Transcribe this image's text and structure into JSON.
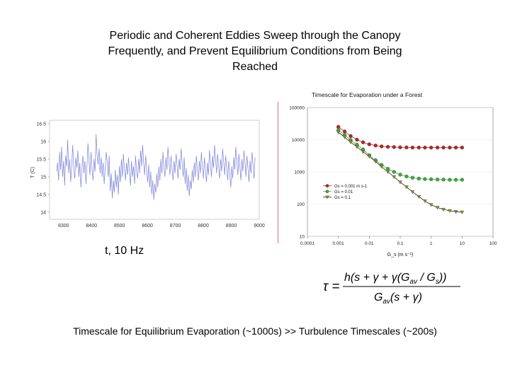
{
  "slide": {
    "title_lines": [
      "Periodic and Coherent Eddies Sweep through the Canopy",
      "Frequently, and Prevent Equilibrium Conditions from Being",
      "Reached"
    ],
    "left_caption": "t, 10 Hz",
    "bottom_text": "Timescale for Equilibrium Evaporation (~1000s) >> Turbulence Timescales (~200s)",
    "formula": {
      "lhs": "τ =",
      "numerator": "h(s + γ + γ(G_av / G_s))",
      "denominator": "G_av(s + γ)"
    }
  },
  "chart_data": [
    {
      "type": "line",
      "title": "",
      "xlabel": "",
      "ylabel": "T (C)",
      "xlim": [
        8250,
        9000
      ],
      "ylim": [
        13.8,
        16.6
      ],
      "xticks": [
        8300,
        8400,
        8500,
        8600,
        8700,
        8800,
        8900,
        9000
      ],
      "yticks": [
        14,
        14.5,
        15,
        15.5,
        16,
        16.5
      ],
      "ytick_labels": [
        "14",
        "14.5",
        "15",
        "15.5",
        "16",
        "16.5"
      ],
      "series": [
        {
          "name": "temperature",
          "color": "#7c82d8",
          "note": "10 Hz temperature fluctuation trace"
        }
      ]
    },
    {
      "type": "line",
      "title": "Timescale for Evaporation under a Forest",
      "xlabel": "G_s (m s⁻¹)",
      "ylabel": "",
      "xscale": "log",
      "yscale": "log",
      "xlim": [
        0.0001,
        100
      ],
      "ylim": [
        10,
        100000
      ],
      "xticks": [
        0.0001,
        0.001,
        0.01,
        0.1,
        1,
        10,
        100
      ],
      "xtick_labels": [
        "0.0001",
        "0.001",
        "0.01",
        "0.1",
        "1",
        "10",
        "100"
      ],
      "yticks": [
        10,
        100,
        1000,
        10000,
        100000
      ],
      "ytick_labels": [
        "10",
        "100",
        "1000",
        "10000",
        "100000"
      ],
      "legend": "lower-left",
      "x": [
        0.001,
        0.0016,
        0.0025,
        0.004,
        0.0063,
        0.01,
        0.016,
        0.025,
        0.04,
        0.063,
        0.1,
        0.16,
        0.25,
        0.4,
        0.63,
        1,
        1.6,
        2.5,
        4,
        6.3,
        10
      ],
      "series": [
        {
          "name": "Gs = 0.001 m s-1",
          "color": "#b52525",
          "marker": "circle",
          "values": [
            25000,
            18000,
            13000,
            10000,
            8300,
            7200,
            6600,
            6200,
            6000,
            5900,
            5800,
            5750,
            5700,
            5700,
            5700,
            5700,
            5700,
            5700,
            5700,
            5700,
            5700
          ]
        },
        {
          "name": "Gs = 0.01",
          "color": "#3fa83f",
          "marker": "circle",
          "values": [
            20000,
            14000,
            9800,
            7000,
            5000,
            3300,
            2300,
            1650,
            1250,
            1000,
            820,
            720,
            660,
            620,
            600,
            590,
            580,
            575,
            570,
            570,
            570
          ]
        },
        {
          "name": "Gs = 0.1",
          "color": "#8a8a2a",
          "marker": "triangle-down",
          "values": [
            17000,
            12000,
            8400,
            6000,
            4200,
            3000,
            2100,
            1450,
            1000,
            700,
            480,
            340,
            240,
            170,
            125,
            95,
            78,
            68,
            62,
            58,
            56
          ]
        }
      ]
    }
  ],
  "temperature_series": [
    15.15,
    15.4,
    14.9,
    15.7,
    15.2,
    15.85,
    15.0,
    15.45,
    14.75,
    15.6,
    15.3,
    16.05,
    15.1,
    15.5,
    14.85,
    15.35,
    15.9,
    15.2,
    14.95,
    15.55,
    15.25,
    15.75,
    15.0,
    15.4,
    14.7,
    15.2,
    15.6,
    15.1,
    15.45,
    14.8,
    15.3,
    15.95,
    15.5,
    15.05,
    15.7,
    15.25,
    14.9,
    15.5,
    15.15,
    16.2,
    15.6,
    15.35,
    15.8,
    15.1,
    15.55,
    15.0,
    15.4,
    14.8,
    15.25,
    15.7,
    15.45,
    15.0,
    15.6,
    14.6,
    15.1,
    14.4,
    14.9,
    14.55,
    15.2,
    14.7,
    15.05,
    14.5,
    15.3,
    14.85,
    15.5,
    15.0,
    15.65,
    15.2,
    14.9,
    15.4,
    15.05,
    15.55,
    15.15,
    14.75,
    15.45,
    15.0,
    15.3,
    14.8,
    15.6,
    15.15,
    14.95,
    15.5,
    15.1,
    15.75,
    15.3,
    15.9,
    15.4,
    15.05,
    15.6,
    15.2,
    14.85,
    15.35,
    14.7,
    15.15,
    14.5,
    14.9,
    14.35,
    14.8,
    14.55,
    15.1,
    14.7,
    15.3,
    14.9,
    15.5,
    15.1,
    15.7,
    15.3,
    15.0,
    15.55,
    15.2,
    15.85,
    15.4,
    15.05,
    15.6,
    15.25,
    14.9,
    15.45,
    15.1,
    15.65,
    15.35,
    14.95,
    15.5,
    15.2,
    15.8,
    15.4,
    15.0,
    15.55,
    14.8,
    15.25,
    14.6,
    15.05,
    14.45,
    14.9,
    14.65,
    15.2,
    14.85,
    15.4,
    15.0,
    15.6,
    15.2,
    14.9,
    15.45,
    15.1,
    15.7,
    15.3,
    14.95,
    15.55,
    15.2,
    14.85,
    15.4,
    15.05,
    15.75,
    15.35,
    15.0,
    15.6,
    15.25,
    15.9,
    15.5,
    15.1,
    15.65,
    15.3,
    14.95,
    15.5,
    15.15,
    15.8,
    15.4,
    15.05,
    15.6,
    15.25,
    14.9,
    15.45,
    15.1,
    14.7,
    15.3,
    14.95,
    15.55,
    15.2,
    15.85,
    15.45,
    15.05,
    15.65,
    15.3,
    14.9,
    15.5,
    15.15,
    15.75,
    15.4,
    15.0,
    15.6,
    15.25,
    14.85,
    15.45,
    15.1,
    15.7,
    15.35,
    14.95,
    15.55
  ]
}
